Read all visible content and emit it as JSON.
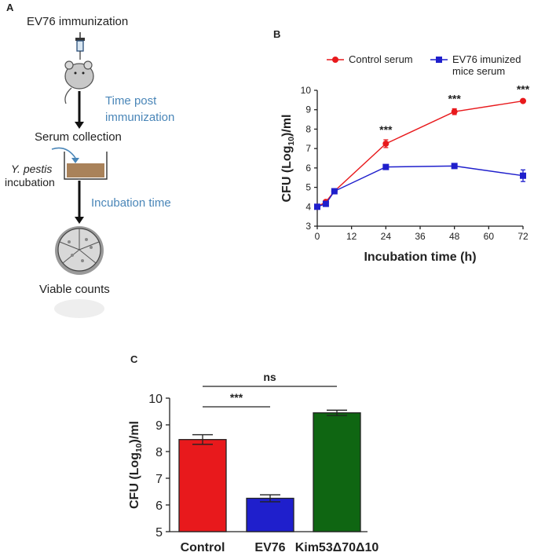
{
  "panels": {
    "a": "A",
    "b": "B",
    "c": "C"
  },
  "flow": {
    "immunization": "EV76 immunization",
    "time_post": "Time post immunization",
    "serum_collection": "Serum  collection",
    "y_pestis": "Y. pestis",
    "incubation": "incubation",
    "incubation_time": "Incubation time",
    "viable_counts": "Viable counts"
  },
  "colors": {
    "control": "#e8191c",
    "ev76": "#1f1fcc",
    "kim": "#0f6612",
    "blue_text": "#4a86b8"
  },
  "chart_data": [
    {
      "type": "line",
      "panel": "B",
      "title": "",
      "xlabel": "Incubation time (h)",
      "ylabel": "CFU (Log10)/ml",
      "xlim": [
        0,
        72
      ],
      "ylim": [
        3,
        10
      ],
      "xticks": [
        0,
        12,
        24,
        36,
        48,
        60,
        72
      ],
      "yticks": [
        3,
        4,
        5,
        6,
        7,
        8,
        9,
        10
      ],
      "legend_position": "top",
      "series": [
        {
          "name": "Control serum",
          "color": "#e8191c",
          "marker": "circle",
          "x": [
            0,
            3,
            6,
            24,
            48,
            72
          ],
          "y": [
            4.0,
            4.25,
            4.8,
            7.25,
            8.9,
            9.45
          ],
          "err": [
            0.05,
            0.08,
            0.1,
            0.2,
            0.15,
            0.08
          ]
        },
        {
          "name": "EV76 imunized mice serum",
          "color": "#1f1fcc",
          "marker": "square",
          "x": [
            0,
            3,
            6,
            24,
            48,
            72
          ],
          "y": [
            4.0,
            4.15,
            4.8,
            6.05,
            6.1,
            5.6
          ],
          "err": [
            0.05,
            0.05,
            0.1,
            0.05,
            0.05,
            0.3
          ]
        }
      ],
      "annotations": [
        {
          "x": 24,
          "text": "***"
        },
        {
          "x": 48,
          "text": "***"
        },
        {
          "x": 72,
          "text": "***"
        }
      ]
    },
    {
      "type": "bar",
      "panel": "C",
      "title": "",
      "xlabel": "",
      "ylabel": "CFU (Log10)/ml",
      "ylim": [
        5,
        10
      ],
      "yticks": [
        5,
        6,
        7,
        8,
        9,
        10
      ],
      "categories": [
        "Control",
        "EV76",
        "Kim53Δ70Δ10"
      ],
      "values": [
        8.45,
        6.25,
        9.45
      ],
      "errors": [
        0.18,
        0.13,
        0.1
      ],
      "colors": [
        "#e8191c",
        "#1f1fcc",
        "#0f6612"
      ],
      "significance": [
        {
          "from": "Control",
          "to": "EV76",
          "text": "***"
        },
        {
          "from": "Control",
          "to": "Kim53Δ70Δ10",
          "text": "ns"
        }
      ]
    }
  ]
}
